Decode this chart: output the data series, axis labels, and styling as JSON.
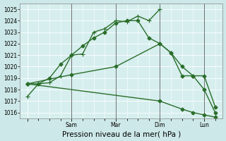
{
  "background_color": "#cde8e8",
  "grid_color": "#b0d8d8",
  "plot_bg": "#d6eeee",
  "line_color": "#2a6e2a",
  "marker_color": "#2a6e2a",
  "title": "Pression niveau de la mer( hPa )",
  "ylim": [
    1015.5,
    1025.5
  ],
  "yticks": [
    1016,
    1017,
    1018,
    1019,
    1020,
    1021,
    1022,
    1023,
    1024,
    1025
  ],
  "x_day_positions": [
    0,
    12,
    24,
    36,
    48
  ],
  "x_day_labels": [
    "",
    "Sam",
    "Mar",
    "Dim",
    "Lun"
  ],
  "series1_x": [
    0,
    3,
    6,
    9,
    12,
    15,
    18,
    21,
    24,
    27,
    30,
    33,
    36
  ],
  "series1_y": [
    1017.4,
    1018.5,
    1018.6,
    1019.2,
    1021.0,
    1021.1,
    1023.0,
    1023.3,
    1024.0,
    1023.9,
    1024.4,
    1024.0,
    1025.0
  ],
  "series2_x": [
    0,
    3,
    6,
    9,
    12,
    15,
    18,
    21,
    24,
    27,
    30,
    33,
    36,
    39,
    42,
    45,
    48,
    51
  ],
  "series2_y": [
    1018.5,
    1018.5,
    1019.0,
    1020.2,
    1021.0,
    1021.8,
    1022.5,
    1023.0,
    1023.8,
    1024.0,
    1024.0,
    1022.5,
    1022.0,
    1021.2,
    1019.2,
    1019.2,
    1018.0,
    1016.0
  ],
  "series3_x": [
    0,
    12,
    24,
    36,
    39,
    42,
    45,
    48,
    51
  ],
  "series3_y": [
    1018.5,
    1019.3,
    1020.0,
    1022.0,
    1021.2,
    1020.0,
    1019.2,
    1019.2,
    1016.5
  ],
  "series4_x": [
    0,
    36,
    42,
    45,
    48,
    51
  ],
  "series4_y": [
    1018.5,
    1017.0,
    1016.3,
    1016.0,
    1015.8,
    1015.6
  ],
  "vline_positions": [
    12,
    24,
    36,
    48
  ],
  "vline_color": "#707070",
  "ylabel_fontsize": 5.5,
  "xlabel_fontsize": 7.5,
  "tick_fontsize": 5.5,
  "lw": 1.0,
  "ms": 2.5
}
